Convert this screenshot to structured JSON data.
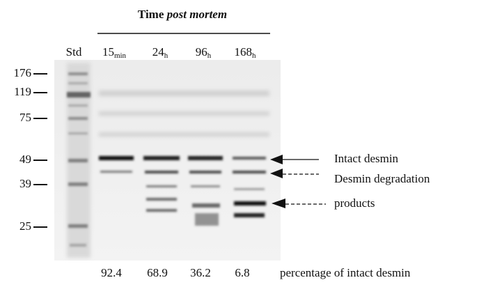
{
  "figure": {
    "title": {
      "text": "Time ",
      "italic": "post mortem"
    },
    "standard_label": "Std",
    "lanes": [
      {
        "value": "15",
        "sub": "min"
      },
      {
        "value": "24",
        "sub": "h"
      },
      {
        "value": "96",
        "sub": "h"
      },
      {
        "value": "168",
        "sub": "h"
      }
    ],
    "markers": [
      "176",
      "119",
      "75",
      "49",
      "39",
      "25"
    ],
    "annotations": {
      "intact": "Intact desmin",
      "degradation_1": "Desmin degradation",
      "degradation_2": "products"
    },
    "percentages": [
      "92.4",
      "68.9",
      "36.2",
      "6.8"
    ],
    "percentage_caption": "percentage of intact desmin"
  }
}
